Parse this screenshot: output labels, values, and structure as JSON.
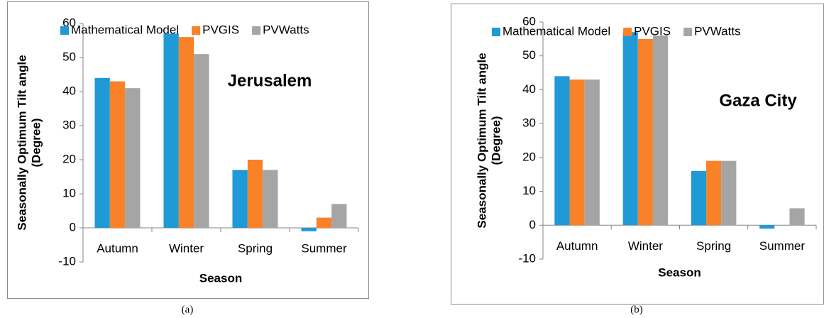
{
  "chart_data": [
    {
      "type": "bar",
      "caption": "(a)",
      "annotation": "Jerusalem",
      "xlabel": "Season",
      "ylabel": [
        "Seasonally Optimum Tilt angle",
        "(Degree)"
      ],
      "categories": [
        "Autumn",
        "Winter",
        "Spring",
        "Summer"
      ],
      "series": [
        {
          "name": "Mathematical Model",
          "color": "#1f9ad6",
          "values": [
            44,
            57,
            17,
            -1
          ]
        },
        {
          "name": "PVGIS",
          "color": "#f98128",
          "values": [
            43,
            56,
            20,
            3
          ]
        },
        {
          "name": "PVWatts",
          "color": "#a5a5a5",
          "values": [
            41,
            51,
            17,
            7
          ]
        }
      ],
      "ylim": [
        -10,
        60
      ],
      "yticks": [
        -10,
        0,
        10,
        20,
        30,
        40,
        50,
        60
      ],
      "grid": false,
      "legend": "top"
    },
    {
      "type": "bar",
      "caption": "(b)",
      "annotation": "Gaza City",
      "xlabel": "Season",
      "ylabel": [
        "Seasonally Optimum Tilt angle",
        "(Degree)"
      ],
      "categories": [
        "Autumn",
        "Winter",
        "Spring",
        "Summer"
      ],
      "series": [
        {
          "name": "Mathematical Model",
          "color": "#1f9ad6",
          "values": [
            44,
            57,
            16,
            -1
          ]
        },
        {
          "name": "PVGIS",
          "color": "#f98128",
          "values": [
            43,
            55,
            19,
            0
          ]
        },
        {
          "name": "PVWatts",
          "color": "#a5a5a5",
          "values": [
            43,
            56,
            19,
            5
          ]
        }
      ],
      "ylim": [
        -10,
        60
      ],
      "yticks": [
        -10,
        0,
        10,
        20,
        30,
        40,
        50,
        60
      ],
      "grid": false,
      "legend": "top"
    }
  ]
}
